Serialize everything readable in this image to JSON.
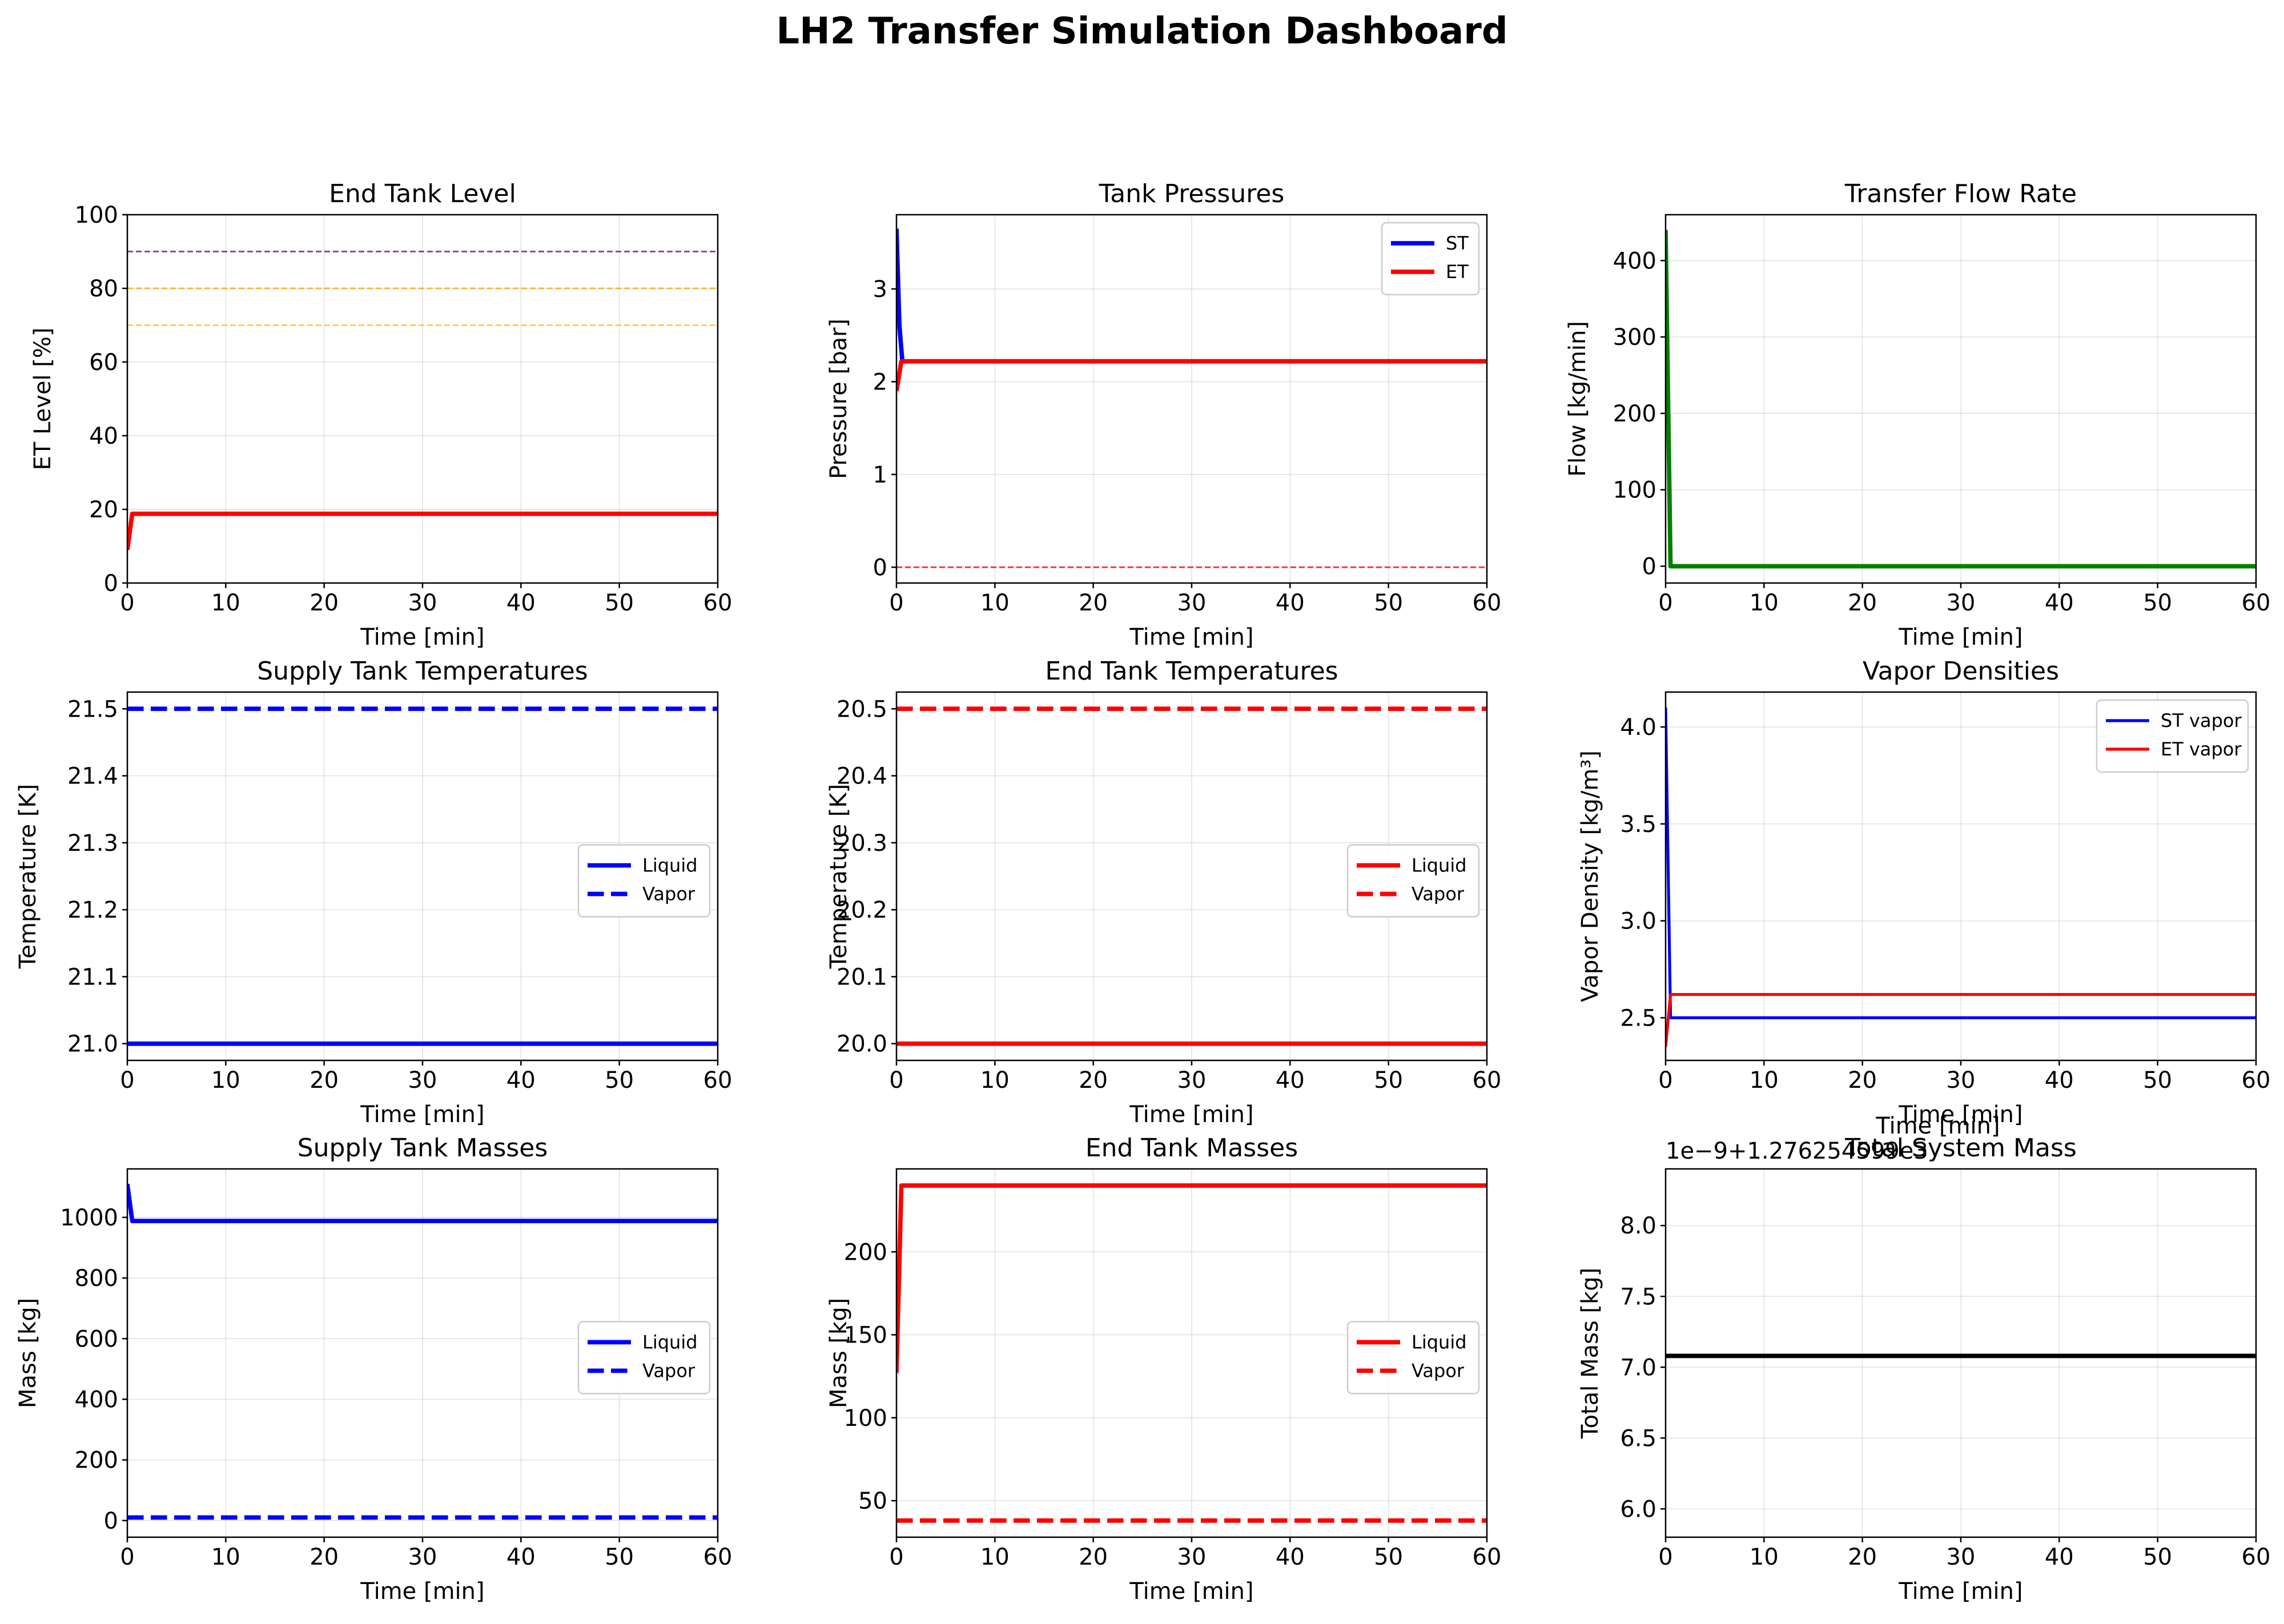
{
  "figure_title": "LH2 Transfer Simulation Dashboard",
  "colors": {
    "st": "#0000ff",
    "et": "#ff0000",
    "flow": "#008000",
    "total": "#000000",
    "ref_purple": "#800080",
    "ref_orange": "#ffa500",
    "ref_gold": "#ffc107",
    "ref_zero": "#ff0000"
  },
  "chart_data": [
    {
      "id": "end-tank-level",
      "type": "line",
      "title": "End Tank Level",
      "xlabel": "Time [min]",
      "ylabel": "ET Level [%]",
      "xlim": [
        0,
        60
      ],
      "ylim": [
        0,
        100
      ],
      "xticks": [
        "0",
        "10",
        "20",
        "30",
        "40",
        "50",
        "60"
      ],
      "yticks": [
        "0",
        "20",
        "40",
        "60",
        "80",
        "100"
      ],
      "grid": true,
      "reference_lines": [
        {
          "y": 90,
          "color": "#800080"
        },
        {
          "y": 80,
          "color": "#ffa500"
        },
        {
          "y": 70,
          "color": "#ffc107"
        }
      ],
      "series": [
        {
          "color": "#ff0000",
          "width": 3,
          "dash": false,
          "x": [
            0,
            0.5,
            60
          ],
          "y": [
            9,
            18.8,
            18.8
          ]
        }
      ]
    },
    {
      "id": "tank-pressures",
      "type": "line",
      "title": "Tank Pressures",
      "xlabel": "Time [min]",
      "ylabel": "Pressure [bar]",
      "xlim": [
        0,
        60
      ],
      "ylim": [
        -0.17,
        3.8
      ],
      "xticks": [
        "0",
        "10",
        "20",
        "30",
        "40",
        "50",
        "60"
      ],
      "yticks": [
        "0",
        "1",
        "2",
        "3"
      ],
      "grid": true,
      "legend": "upper right",
      "reference_lines": [
        {
          "y": 0,
          "color": "#ff0000"
        }
      ],
      "series": [
        {
          "name": "ST",
          "color": "#0000ff",
          "width": 3,
          "dash": false,
          "x": [
            0,
            0.3,
            0.6,
            60
          ],
          "y": [
            3.65,
            2.6,
            2.22,
            2.22
          ]
        },
        {
          "name": "ET",
          "color": "#ff0000",
          "width": 3,
          "dash": false,
          "x": [
            0,
            0.5,
            60
          ],
          "y": [
            1.9,
            2.22,
            2.22
          ]
        }
      ]
    },
    {
      "id": "transfer-flow-rate",
      "type": "line",
      "title": "Transfer Flow Rate",
      "xlabel": "Time [min]",
      "ylabel": "Flow [kg/min]",
      "xlim": [
        0,
        60
      ],
      "ylim": [
        -22,
        460
      ],
      "xticks": [
        "0",
        "10",
        "20",
        "30",
        "40",
        "50",
        "60"
      ],
      "yticks": [
        "0",
        "100",
        "200",
        "300",
        "400"
      ],
      "grid": true,
      "series": [
        {
          "color": "#008000",
          "width": 3,
          "dash": false,
          "x": [
            0,
            0.5,
            60
          ],
          "y": [
            440,
            0,
            0
          ]
        }
      ]
    },
    {
      "id": "supply-tank-temperatures",
      "type": "line",
      "title": "Supply Tank Temperatures",
      "xlabel": "Time [min]",
      "ylabel": "Temperature [K]",
      "xlim": [
        0,
        60
      ],
      "ylim": [
        20.975,
        21.525
      ],
      "xticks": [
        "0",
        "10",
        "20",
        "30",
        "40",
        "50",
        "60"
      ],
      "yticks": [
        "21.0",
        "21.1",
        "21.2",
        "21.3",
        "21.4",
        "21.5"
      ],
      "grid": true,
      "legend": "center right",
      "series": [
        {
          "name": "Liquid",
          "color": "#0000ff",
          "width": 3,
          "dash": false,
          "x": [
            0,
            60
          ],
          "y": [
            21.0,
            21.0
          ]
        },
        {
          "name": "Vapor",
          "color": "#0000ff",
          "width": 3,
          "dash": true,
          "x": [
            0,
            60
          ],
          "y": [
            21.5,
            21.5
          ]
        }
      ]
    },
    {
      "id": "end-tank-temperatures",
      "type": "line",
      "title": "End Tank Temperatures",
      "xlabel": "Time [min]",
      "ylabel": "Temperature [K]",
      "xlim": [
        0,
        60
      ],
      "ylim": [
        19.975,
        20.525
      ],
      "xticks": [
        "0",
        "10",
        "20",
        "30",
        "40",
        "50",
        "60"
      ],
      "yticks": [
        "20.0",
        "20.1",
        "20.2",
        "20.3",
        "20.4",
        "20.5"
      ],
      "grid": true,
      "legend": "center right",
      "series": [
        {
          "name": "Liquid",
          "color": "#ff0000",
          "width": 3,
          "dash": false,
          "x": [
            0,
            60
          ],
          "y": [
            20.0,
            20.0
          ]
        },
        {
          "name": "Vapor",
          "color": "#ff0000",
          "width": 3,
          "dash": true,
          "x": [
            0,
            60
          ],
          "y": [
            20.5,
            20.5
          ]
        }
      ]
    },
    {
      "id": "vapor-densities",
      "type": "line",
      "title": "Vapor Densities",
      "xlabel": "Time [min]",
      "ylabel": "Vapor Density [kg/m³]",
      "xlim": [
        0,
        60
      ],
      "ylim": [
        2.28,
        4.18
      ],
      "xticks": [
        "0",
        "10",
        "20",
        "30",
        "40",
        "50",
        "60"
      ],
      "yticks": [
        "2.5",
        "3.0",
        "3.5",
        "4.0"
      ],
      "grid": true,
      "legend": "upper right",
      "series": [
        {
          "name": "ST vapor",
          "color": "#0000ff",
          "width": 2,
          "dash": false,
          "x": [
            0,
            0.5,
            60
          ],
          "y": [
            4.1,
            2.5,
            2.5
          ]
        },
        {
          "name": "ET vapor",
          "color": "#ff0000",
          "width": 2,
          "dash": false,
          "x": [
            0,
            0.5,
            60
          ],
          "y": [
            2.35,
            2.62,
            2.62
          ]
        }
      ]
    },
    {
      "id": "supply-tank-masses",
      "type": "line",
      "title": "Supply Tank Masses",
      "xlabel": "Time [min]",
      "ylabel": "Mass [kg]",
      "xlim": [
        0,
        60
      ],
      "ylim": [
        -55,
        1160
      ],
      "xticks": [
        "0",
        "10",
        "20",
        "30",
        "40",
        "50",
        "60"
      ],
      "yticks": [
        "0",
        "200",
        "400",
        "600",
        "800",
        "1000"
      ],
      "grid": true,
      "legend": "center right",
      "series": [
        {
          "name": "Liquid",
          "color": "#0000ff",
          "width": 3,
          "dash": false,
          "x": [
            0,
            0.5,
            60
          ],
          "y": [
            1110,
            988,
            988
          ]
        },
        {
          "name": "Vapor",
          "color": "#0000ff",
          "width": 3,
          "dash": true,
          "x": [
            0,
            60
          ],
          "y": [
            10,
            10
          ]
        }
      ]
    },
    {
      "id": "end-tank-masses",
      "type": "line",
      "title": "End Tank Masses",
      "xlabel": "Time [min]",
      "ylabel": "Mass [kg]",
      "xlim": [
        0,
        60
      ],
      "ylim": [
        28,
        250
      ],
      "xticks": [
        "0",
        "10",
        "20",
        "30",
        "40",
        "50",
        "60"
      ],
      "yticks": [
        "50",
        "100",
        "150",
        "200"
      ],
      "grid": true,
      "legend": "center right",
      "series": [
        {
          "name": "Liquid",
          "color": "#ff0000",
          "width": 3,
          "dash": false,
          "x": [
            0,
            0.5,
            60
          ],
          "y": [
            127,
            240,
            240
          ]
        },
        {
          "name": "Vapor",
          "color": "#ff0000",
          "width": 3,
          "dash": true,
          "x": [
            0,
            60
          ],
          "y": [
            38,
            38
          ]
        }
      ]
    },
    {
      "id": "total-system-mass",
      "type": "line",
      "title": "Total System Mass",
      "xlabel": "Time [min]",
      "ylabel": "Total Mass [kg]",
      "offset_label": "1e−9+1.276254599e3",
      "overlap_label": "Time [min]",
      "xlim": [
        0,
        60
      ],
      "ylim": [
        5.8,
        8.4
      ],
      "xticks": [
        "0",
        "10",
        "20",
        "30",
        "40",
        "50",
        "60"
      ],
      "yticks": [
        "6.0",
        "6.5",
        "7.0",
        "7.5",
        "8.0"
      ],
      "grid": true,
      "series": [
        {
          "color": "#000000",
          "width": 3,
          "dash": false,
          "x": [
            0,
            60
          ],
          "y": [
            7.08,
            7.08
          ]
        }
      ]
    }
  ]
}
